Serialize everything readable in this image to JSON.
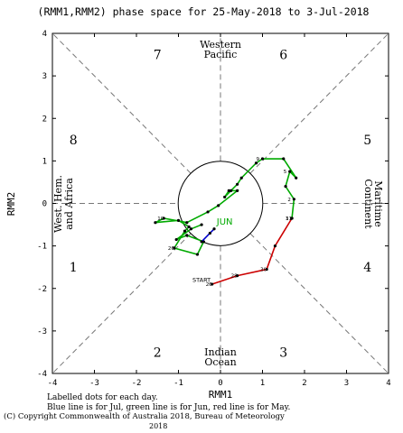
{
  "chart_data": {
    "type": "scatter",
    "title": "(RMM1,RMM2) phase space for 25-May-2018 to  3-Jul-2018",
    "xlabel": "RMM1",
    "ylabel": "RMM2",
    "xlim": [
      -4,
      4
    ],
    "ylim": [
      -4,
      4
    ],
    "x_ticks": [
      "-4",
      "-3",
      "-2",
      "-1",
      "0",
      "1",
      "2",
      "3",
      "4"
    ],
    "y_ticks": [
      "-4",
      "-3",
      "-2",
      "-1",
      "0",
      "1",
      "2",
      "3",
      "4"
    ],
    "grid": false,
    "unit_circle_radius": 1,
    "phases": [
      {
        "label": "1",
        "x": -3.5,
        "y": -1.5
      },
      {
        "label": "2",
        "x": -1.5,
        "y": -3.5
      },
      {
        "label": "3",
        "x": 1.5,
        "y": -3.5
      },
      {
        "label": "4",
        "x": 3.5,
        "y": -1.5
      },
      {
        "label": "5",
        "x": 3.5,
        "y": 1.5
      },
      {
        "label": "6",
        "x": 1.5,
        "y": 3.5
      },
      {
        "label": "7",
        "x": -1.5,
        "y": 3.5
      },
      {
        "label": "8",
        "x": -3.5,
        "y": 1.5
      }
    ],
    "regions": {
      "top": [
        "Western",
        "Pacific"
      ],
      "bottom": [
        "Indian",
        "Ocean"
      ],
      "left": [
        "West. Hem.",
        "and Africa"
      ],
      "right": [
        "Maritime",
        "Continent"
      ]
    },
    "series": [
      {
        "name": "May",
        "color": "#cc0000",
        "x": [
          -0.2,
          0.4,
          1.1,
          1.3,
          1.7
        ],
        "y": [
          -1.9,
          -1.7,
          -1.55,
          -1.0,
          -0.35
        ],
        "labels": [
          "26",
          "28",
          "30",
          "",
          "31"
        ]
      },
      {
        "name": "Jun",
        "color": "#00aa00",
        "x": [
          1.7,
          1.75,
          1.55,
          1.65,
          1.8,
          1.5,
          1.0,
          0.85,
          0.5,
          0.4,
          0.25,
          0.1,
          0.2,
          0.4,
          -0.05,
          -0.3,
          -0.8,
          -1.35,
          -1.55,
          -1.0,
          -0.75,
          -0.85,
          -1.1,
          -0.55,
          -0.4,
          -0.8,
          -1.05,
          -0.7,
          -0.45
        ],
        "y": [
          -0.35,
          0.1,
          0.4,
          0.75,
          0.6,
          1.05,
          1.05,
          0.95,
          0.6,
          0.45,
          0.3,
          0.15,
          0.3,
          0.3,
          -0.05,
          -0.2,
          -0.45,
          -0.35,
          -0.45,
          -0.4,
          -0.55,
          -0.65,
          -1.05,
          -1.2,
          -0.9,
          -0.75,
          -0.85,
          -0.6,
          -0.5
        ],
        "labels": [
          "1",
          "2",
          "",
          "5",
          "",
          "",
          "9",
          "",
          "",
          "",
          "",
          "",
          "",
          "",
          "",
          "",
          "",
          "10",
          "",
          "",
          "",
          "",
          "26",
          "",
          "",
          "",
          "",
          "",
          ""
        ]
      },
      {
        "name": "Jul",
        "color": "#0000cc",
        "x": [
          -0.45,
          -0.25,
          -0.15
        ],
        "y": [
          -0.9,
          -0.7,
          -0.6
        ],
        "labels": [
          "",
          "",
          ""
        ]
      }
    ],
    "annotations": [
      {
        "text": "START",
        "x": -0.45,
        "y": -1.85
      },
      {
        "text": "JUN",
        "x": 0.1,
        "y": -0.5
      }
    ]
  },
  "footer": {
    "line1": "Labelled dots for each day.",
    "line2": "Blue line is for Jul, green line is for Jun, red line is for May.",
    "line3": "(C) Copyright Commonwealth of Australia 2018, Bureau of Meteorology",
    "line4": "2018"
  }
}
